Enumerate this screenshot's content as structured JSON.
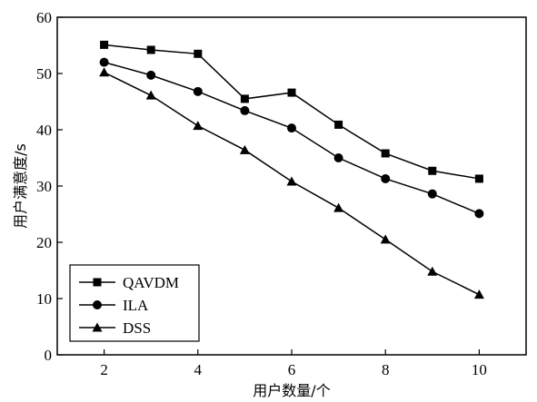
{
  "chart_data": {
    "type": "line",
    "title": "",
    "xlabel": "用户数量/个",
    "ylabel": "用户满意度/s",
    "xlim": [
      1,
      11
    ],
    "ylim": [
      0,
      60
    ],
    "xticks": [
      2,
      4,
      6,
      8,
      10
    ],
    "yticks": [
      0,
      10,
      20,
      30,
      40,
      50,
      60
    ],
    "x": [
      2,
      3,
      4,
      5,
      6,
      7,
      8,
      9,
      10
    ],
    "grid": false,
    "legend_position": "bottom-left",
    "series": [
      {
        "name": "QAVDM",
        "marker": "square",
        "color": "#000000",
        "values": [
          55.1,
          54.2,
          53.5,
          45.5,
          46.6,
          40.9,
          35.8,
          32.7,
          31.3
        ]
      },
      {
        "name": "ILA",
        "marker": "circle",
        "color": "#000000",
        "values": [
          52.0,
          49.7,
          46.8,
          43.4,
          40.3,
          35.0,
          31.3,
          28.6,
          25.1
        ]
      },
      {
        "name": "DSS",
        "marker": "triangle",
        "color": "#000000",
        "values": [
          50.2,
          46.1,
          40.7,
          36.4,
          30.8,
          26.1,
          20.5,
          14.8,
          10.7
        ]
      }
    ]
  }
}
